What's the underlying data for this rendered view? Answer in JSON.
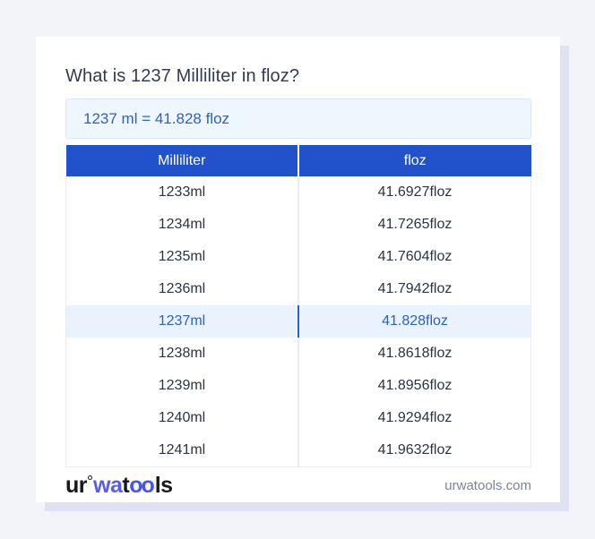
{
  "card": {
    "title": "What is 1237 Milliliter in floz?",
    "answer": "1237 ml = 41.828 floz"
  },
  "table": {
    "columns": [
      "Milliliter",
      "floz"
    ],
    "rows": [
      {
        "ml": "1233ml",
        "floz": "41.6927floz",
        "highlight": false
      },
      {
        "ml": "1234ml",
        "floz": "41.7265floz",
        "highlight": false
      },
      {
        "ml": "1235ml",
        "floz": "41.7604floz",
        "highlight": false
      },
      {
        "ml": "1236ml",
        "floz": "41.7942floz",
        "highlight": false
      },
      {
        "ml": "1237ml",
        "floz": "41.828floz",
        "highlight": true
      },
      {
        "ml": "1238ml",
        "floz": "41.8618floz",
        "highlight": false
      },
      {
        "ml": "1239ml",
        "floz": "41.8956floz",
        "highlight": false
      },
      {
        "ml": "1240ml",
        "floz": "41.9294floz",
        "highlight": false
      },
      {
        "ml": "1241ml",
        "floz": "41.9632floz",
        "highlight": false
      }
    ]
  },
  "footer": {
    "logo": {
      "ur": "ur",
      "wa": "wa",
      "t": "t",
      "oo": "oo",
      "ls": "ls"
    },
    "domain": "urwatools.com"
  },
  "colors": {
    "header-blue": "#2151cb",
    "accent-blue": "#2b63c3",
    "answer-bg": "#eef6fe",
    "answer-border": "#d9e7f7",
    "highlight-bg": "#e9f2fd",
    "page-bg": "#f2f4f9",
    "card-shadow": "#dee3f1",
    "row-text": "#2b3442",
    "title-text": "#323c4f",
    "domain-text": "#7b8494",
    "logo-indigo": "#585cef",
    "logo-blue": "#4355f0"
  }
}
